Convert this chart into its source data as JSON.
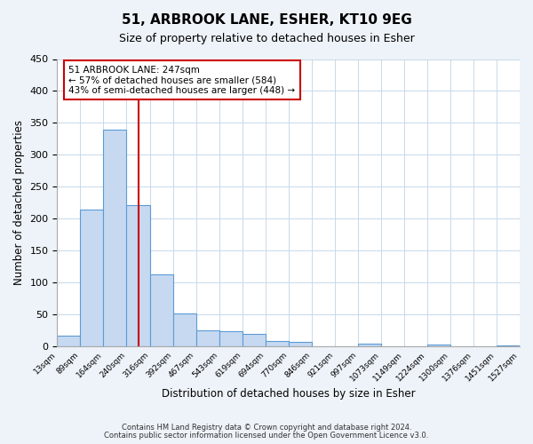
{
  "title": "51, ARBROOK LANE, ESHER, KT10 9EG",
  "subtitle": "Size of property relative to detached houses in Esher",
  "xlabel": "Distribution of detached houses by size in Esher",
  "ylabel": "Number of detached properties",
  "bin_labels": [
    "13sqm",
    "89sqm",
    "164sqm",
    "240sqm",
    "316sqm",
    "392sqm",
    "467sqm",
    "543sqm",
    "619sqm",
    "694sqm",
    "770sqm",
    "846sqm",
    "921sqm",
    "997sqm",
    "1073sqm",
    "1149sqm",
    "1224sqm",
    "1300sqm",
    "1376sqm",
    "1451sqm",
    "1527sqm"
  ],
  "bar_values": [
    17,
    215,
    340,
    222,
    113,
    52,
    25,
    24,
    20,
    9,
    8,
    0,
    0,
    5,
    0,
    0,
    3,
    0,
    0,
    2
  ],
  "bar_color": "#c6d9f1",
  "bar_edge_color": "#5b9bd5",
  "vline_position": 3.5,
  "vline_color": "#cc0000",
  "ylim": [
    0,
    450
  ],
  "yticks": [
    0,
    50,
    100,
    150,
    200,
    250,
    300,
    350,
    400,
    450
  ],
  "annotation_text": "51 ARBROOK LANE: 247sqm\n← 57% of detached houses are smaller (584)\n43% of semi-detached houses are larger (448) →",
  "annotation_box_edge_color": "#cc0000",
  "footnote1": "Contains HM Land Registry data © Crown copyright and database right 2024.",
  "footnote2": "Contains public sector information licensed under the Open Government Licence v3.0.",
  "bg_color": "#eef3f9",
  "plot_bg_color": "#ffffff",
  "grid_color": "#c8d8ea"
}
